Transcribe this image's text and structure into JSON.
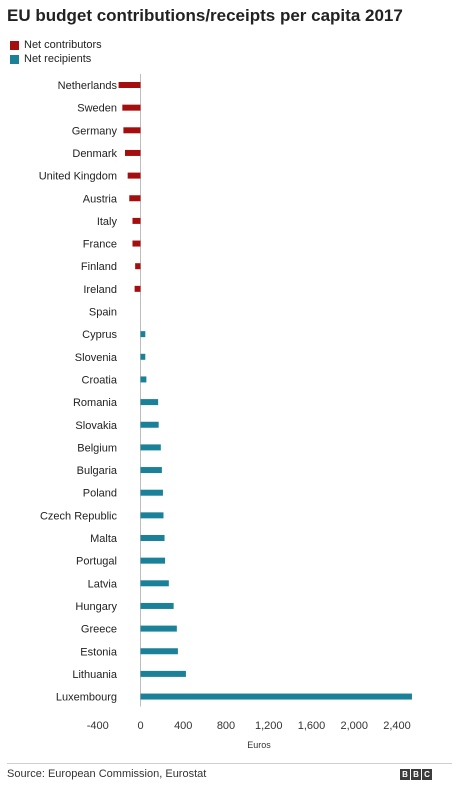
{
  "chart_data": {
    "type": "bar",
    "orientation": "horizontal",
    "title": "EU budget contributions/receipts per capita 2017",
    "xlabel": "Euros",
    "ylabel": "",
    "xlim": [
      -400,
      2500
    ],
    "xticks": [
      -400,
      0,
      400,
      800,
      1200,
      1600,
      2000,
      2400
    ],
    "xtick_labels": [
      "-400",
      "0",
      "400",
      "800",
      "1,200",
      "1,600",
      "2,000",
      "2,400"
    ],
    "grid": false,
    "legend_position": "top-left",
    "legend": [
      {
        "name": "Net contributors",
        "color": "#a50e0e"
      },
      {
        "name": "Net recipients",
        "color": "#1a8199"
      }
    ],
    "categories": [
      "Netherlands",
      "Sweden",
      "Germany",
      "Denmark",
      "United Kingdom",
      "Austria",
      "Italy",
      "France",
      "Finland",
      "Ireland",
      "Spain",
      "Cyprus",
      "Slovenia",
      "Croatia",
      "Romania",
      "Slovakia",
      "Belgium",
      "Bulgaria",
      "Poland",
      "Czech Republic",
      "Malta",
      "Portugal",
      "Latvia",
      "Hungary",
      "Greece",
      "Estonia",
      "Lithuania",
      "Luxembourg"
    ],
    "values": [
      -205,
      -170,
      -160,
      -145,
      -120,
      -105,
      -75,
      -75,
      -50,
      -55,
      0,
      45,
      45,
      55,
      165,
      170,
      190,
      200,
      210,
      215,
      225,
      230,
      265,
      310,
      340,
      350,
      425,
      2540
    ]
  },
  "source": "Source: European Commission, Eurostat",
  "logo": [
    "B",
    "B",
    "C"
  ],
  "colors": {
    "negative": "#a50e0e",
    "positive": "#1a8199",
    "axis": "#bdbdbd"
  }
}
